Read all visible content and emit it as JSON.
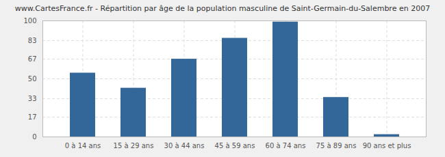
{
  "chart_data": {
    "type": "bar",
    "title": "www.CartesFrance.fr - Répartition par âge de la population masculine de Saint-Germain-du-Salembre en 2007",
    "categories": [
      "0 à 14 ans",
      "15 à 29 ans",
      "30 à 44 ans",
      "45 à 59 ans",
      "60 à 74 ans",
      "75 à 89 ans",
      "90 ans et plus"
    ],
    "values": [
      55,
      42,
      67,
      85,
      99,
      34,
      2
    ],
    "color": "#336699",
    "ylim": [
      0,
      100
    ],
    "yticks": [
      0,
      17,
      33,
      50,
      67,
      83,
      100
    ],
    "grid": true
  }
}
